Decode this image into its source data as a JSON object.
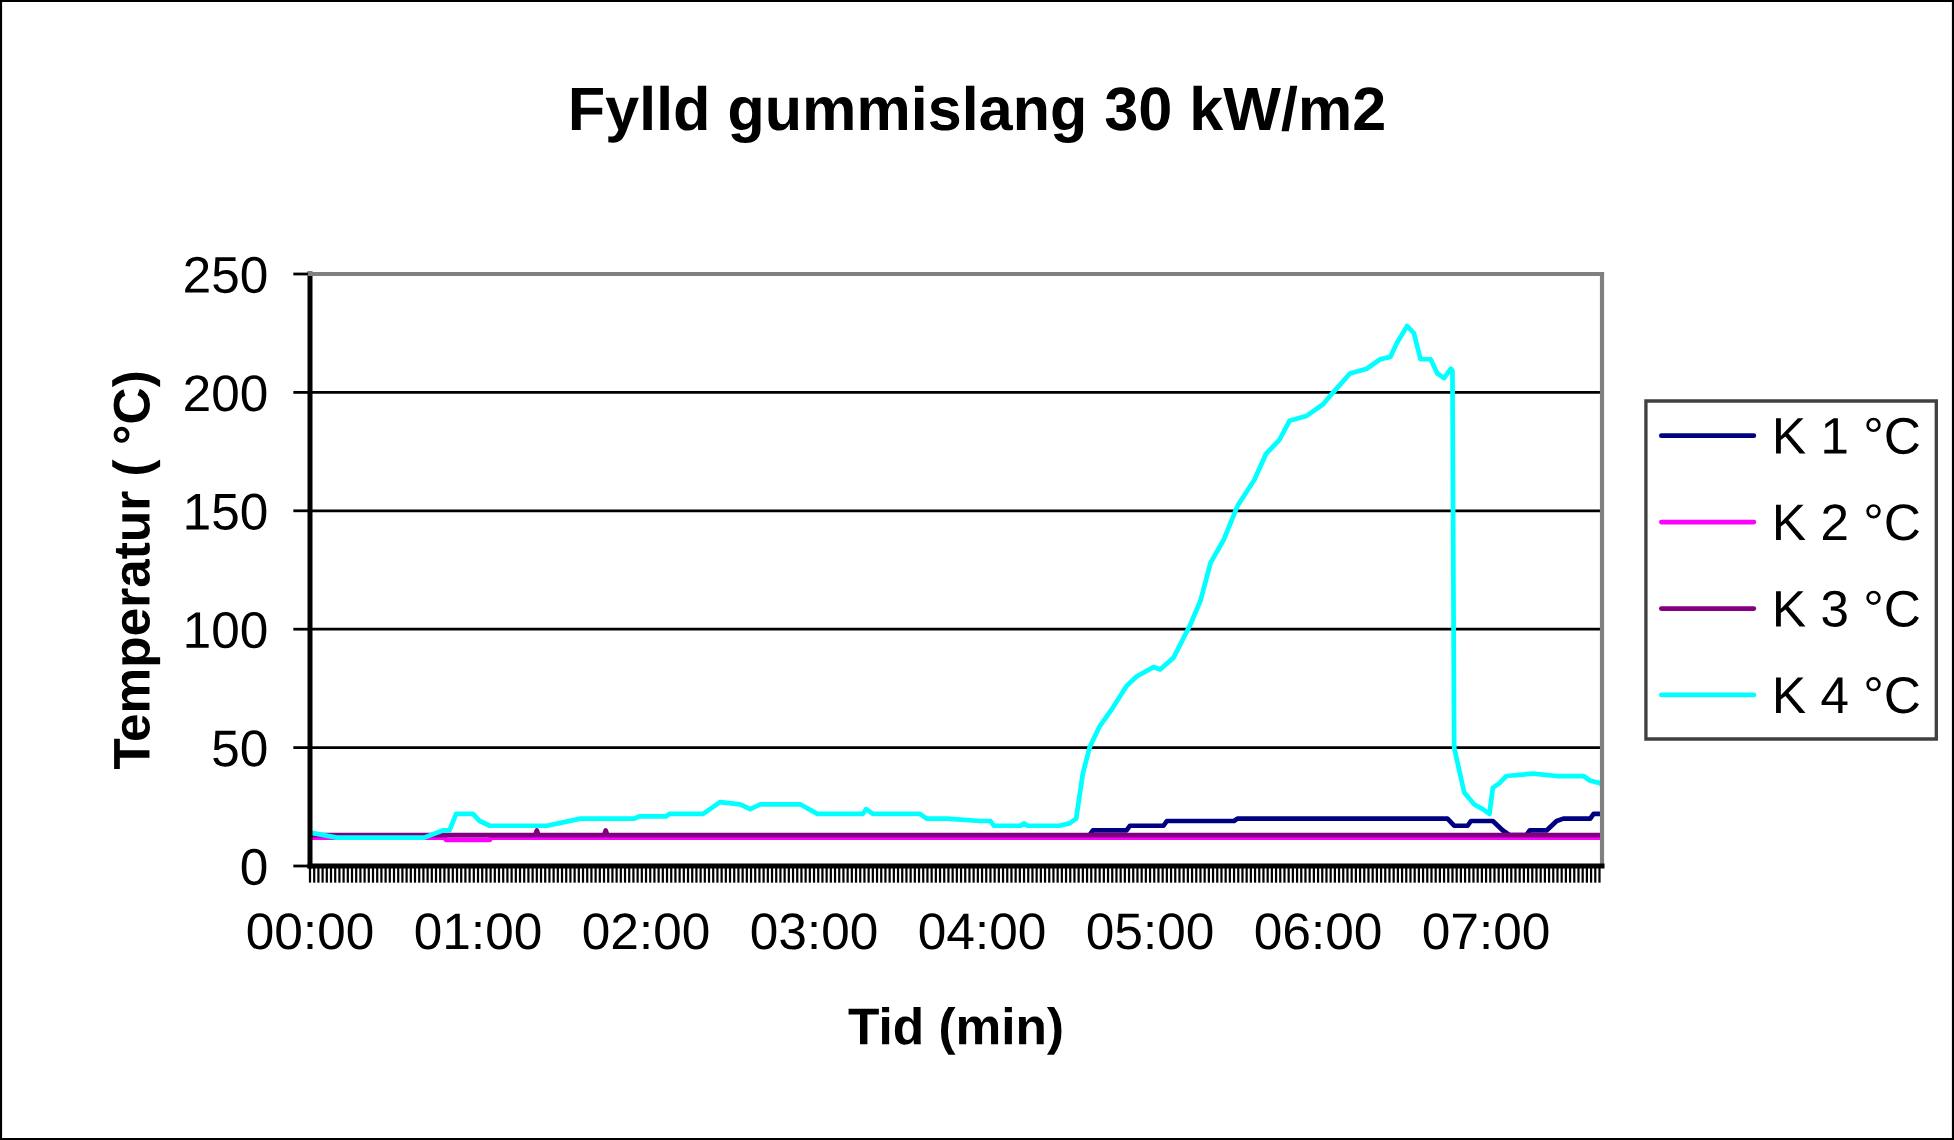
{
  "chart_data": {
    "type": "line",
    "title": "Fylld gummislang 30 kW/m2",
    "xlabel": "Tid (min)",
    "ylabel": "Temperatur ( °C)",
    "xlim": [
      0,
      7.69
    ],
    "ylim": [
      0,
      250
    ],
    "yticks": [
      0,
      50,
      100,
      150,
      200,
      250
    ],
    "xticks": [
      {
        "value": 0,
        "label": "00:00"
      },
      {
        "value": 0.025,
        "label": null
      },
      {
        "value": 0.05,
        "label": null
      },
      {
        "value": 0.075,
        "label": null
      },
      {
        "value": 0.1,
        "label": null
      },
      {
        "value": 0.125,
        "label": null
      },
      {
        "value": 0.15,
        "label": null
      },
      {
        "value": 0.175,
        "label": null
      },
      {
        "value": 0.2,
        "label": null
      },
      {
        "value": 0.225,
        "label": null
      },
      {
        "value": 0.25,
        "label": null
      },
      {
        "value": 0.275,
        "label": null
      },
      {
        "value": 0.3,
        "label": null
      },
      {
        "value": 0.325,
        "label": null
      },
      {
        "value": 0.35,
        "label": null
      },
      {
        "value": 0.375,
        "label": null
      },
      {
        "value": 0.4,
        "label": null
      },
      {
        "value": 0.425,
        "label": null
      },
      {
        "value": 0.45,
        "label": null
      },
      {
        "value": 0.475,
        "label": null
      },
      {
        "value": 0.5,
        "label": null
      },
      {
        "value": 0.525,
        "label": null
      },
      {
        "value": 0.55,
        "label": null
      },
      {
        "value": 0.575,
        "label": null
      },
      {
        "value": 0.6,
        "label": null
      },
      {
        "value": 0.625,
        "label": null
      },
      {
        "value": 0.65,
        "label": null
      },
      {
        "value": 0.675,
        "label": null
      },
      {
        "value": 0.7,
        "label": null
      },
      {
        "value": 0.725,
        "label": null
      },
      {
        "value": 0.75,
        "label": null
      },
      {
        "value": 0.775,
        "label": null
      },
      {
        "value": 0.8,
        "label": null
      },
      {
        "value": 0.825,
        "label": null
      },
      {
        "value": 0.85,
        "label": null
      },
      {
        "value": 0.875,
        "label": null
      },
      {
        "value": 0.9,
        "label": null
      },
      {
        "value": 0.925,
        "label": null
      },
      {
        "value": 0.95,
        "label": null
      },
      {
        "value": 0.975,
        "label": null
      },
      {
        "value": 1,
        "label": "01:00"
      },
      {
        "value": 1.025,
        "label": null
      },
      {
        "value": 1.05,
        "label": null
      },
      {
        "value": 1.075,
        "label": null
      },
      {
        "value": 1.1,
        "label": null
      },
      {
        "value": 1.125,
        "label": null
      },
      {
        "value": 1.15,
        "label": null
      },
      {
        "value": 1.175,
        "label": null
      },
      {
        "value": 1.2,
        "label": null
      },
      {
        "value": 1.225,
        "label": null
      },
      {
        "value": 1.25,
        "label": null
      },
      {
        "value": 1.275,
        "label": null
      },
      {
        "value": 1.3,
        "label": null
      },
      {
        "value": 1.325,
        "label": null
      },
      {
        "value": 1.35,
        "label": null
      },
      {
        "value": 1.375,
        "label": null
      },
      {
        "value": 1.4,
        "label": null
      },
      {
        "value": 1.425,
        "label": null
      },
      {
        "value": 1.45,
        "label": null
      },
      {
        "value": 1.475,
        "label": null
      },
      {
        "value": 1.5,
        "label": null
      },
      {
        "value": 1.525,
        "label": null
      },
      {
        "value": 1.55,
        "label": null
      },
      {
        "value": 1.575,
        "label": null
      },
      {
        "value": 1.6,
        "label": null
      },
      {
        "value": 1.625,
        "label": null
      },
      {
        "value": 1.65,
        "label": null
      },
      {
        "value": 1.675,
        "label": null
      },
      {
        "value": 1.7,
        "label": null
      },
      {
        "value": 1.725,
        "label": null
      },
      {
        "value": 1.75,
        "label": null
      },
      {
        "value": 1.775,
        "label": null
      },
      {
        "value": 1.8,
        "label": null
      },
      {
        "value": 1.825,
        "label": null
      },
      {
        "value": 1.85,
        "label": null
      },
      {
        "value": 1.875,
        "label": null
      },
      {
        "value": 1.9,
        "label": null
      },
      {
        "value": 1.925,
        "label": null
      },
      {
        "value": 1.95,
        "label": null
      },
      {
        "value": 1.975,
        "label": null
      },
      {
        "value": 2,
        "label": "02:00"
      },
      {
        "value": 2.025,
        "label": null
      },
      {
        "value": 2.05,
        "label": null
      },
      {
        "value": 2.075,
        "label": null
      },
      {
        "value": 2.1,
        "label": null
      },
      {
        "value": 2.125,
        "label": null
      },
      {
        "value": 2.15,
        "label": null
      },
      {
        "value": 2.175,
        "label": null
      },
      {
        "value": 2.2,
        "label": null
      },
      {
        "value": 2.225,
        "label": null
      },
      {
        "value": 2.25,
        "label": null
      },
      {
        "value": 2.275,
        "label": null
      },
      {
        "value": 2.3,
        "label": null
      },
      {
        "value": 2.325,
        "label": null
      },
      {
        "value": 2.35,
        "label": null
      },
      {
        "value": 2.375,
        "label": null
      },
      {
        "value": 2.4,
        "label": null
      },
      {
        "value": 2.425,
        "label": null
      },
      {
        "value": 2.45,
        "label": null
      },
      {
        "value": 2.475,
        "label": null
      },
      {
        "value": 2.5,
        "label": null
      },
      {
        "value": 2.525,
        "label": null
      },
      {
        "value": 2.55,
        "label": null
      },
      {
        "value": 2.575,
        "label": null
      },
      {
        "value": 2.6,
        "label": null
      },
      {
        "value": 2.625,
        "label": null
      },
      {
        "value": 2.65,
        "label": null
      },
      {
        "value": 2.675,
        "label": null
      },
      {
        "value": 2.7,
        "label": null
      },
      {
        "value": 2.725,
        "label": null
      },
      {
        "value": 2.75,
        "label": null
      },
      {
        "value": 2.775,
        "label": null
      },
      {
        "value": 2.8,
        "label": null
      },
      {
        "value": 2.825,
        "label": null
      },
      {
        "value": 2.85,
        "label": null
      },
      {
        "value": 2.875,
        "label": null
      },
      {
        "value": 2.9,
        "label": null
      },
      {
        "value": 2.925,
        "label": null
      },
      {
        "value": 2.95,
        "label": null
      },
      {
        "value": 2.975,
        "label": null
      },
      {
        "value": 3,
        "label": "03:00"
      },
      {
        "value": 3.025,
        "label": null
      },
      {
        "value": 3.05,
        "label": null
      },
      {
        "value": 3.075,
        "label": null
      },
      {
        "value": 3.1,
        "label": null
      },
      {
        "value": 3.125,
        "label": null
      },
      {
        "value": 3.15,
        "label": null
      },
      {
        "value": 3.175,
        "label": null
      },
      {
        "value": 3.2,
        "label": null
      },
      {
        "value": 3.225,
        "label": null
      },
      {
        "value": 3.25,
        "label": null
      },
      {
        "value": 3.275,
        "label": null
      },
      {
        "value": 3.3,
        "label": null
      },
      {
        "value": 3.325,
        "label": null
      },
      {
        "value": 3.35,
        "label": null
      },
      {
        "value": 3.375,
        "label": null
      },
      {
        "value": 3.4,
        "label": null
      },
      {
        "value": 3.425,
        "label": null
      },
      {
        "value": 3.45,
        "label": null
      },
      {
        "value": 3.475,
        "label": null
      },
      {
        "value": 3.5,
        "label": null
      },
      {
        "value": 3.525,
        "label": null
      },
      {
        "value": 3.55,
        "label": null
      },
      {
        "value": 3.575,
        "label": null
      },
      {
        "value": 3.6,
        "label": null
      },
      {
        "value": 3.625,
        "label": null
      },
      {
        "value": 3.65,
        "label": null
      },
      {
        "value": 3.675,
        "label": null
      },
      {
        "value": 3.7,
        "label": null
      },
      {
        "value": 3.725,
        "label": null
      },
      {
        "value": 3.75,
        "label": null
      },
      {
        "value": 3.775,
        "label": null
      },
      {
        "value": 3.8,
        "label": null
      },
      {
        "value": 3.825,
        "label": null
      },
      {
        "value": 3.85,
        "label": null
      },
      {
        "value": 3.875,
        "label": null
      },
      {
        "value": 3.9,
        "label": null
      },
      {
        "value": 3.925,
        "label": null
      },
      {
        "value": 3.95,
        "label": null
      },
      {
        "value": 3.975,
        "label": null
      },
      {
        "value": 4,
        "label": "04:00"
      },
      {
        "value": 4.025,
        "label": null
      },
      {
        "value": 4.05,
        "label": null
      },
      {
        "value": 4.075,
        "label": null
      },
      {
        "value": 4.1,
        "label": null
      },
      {
        "value": 4.125,
        "label": null
      },
      {
        "value": 4.15,
        "label": null
      },
      {
        "value": 4.175,
        "label": null
      },
      {
        "value": 4.2,
        "label": null
      },
      {
        "value": 4.225,
        "label": null
      },
      {
        "value": 4.25,
        "label": null
      },
      {
        "value": 4.275,
        "label": null
      },
      {
        "value": 4.3,
        "label": null
      },
      {
        "value": 4.325,
        "label": null
      },
      {
        "value": 4.35,
        "label": null
      },
      {
        "value": 4.375,
        "label": null
      },
      {
        "value": 4.4,
        "label": null
      },
      {
        "value": 4.425,
        "label": null
      },
      {
        "value": 4.45,
        "label": null
      },
      {
        "value": 4.475,
        "label": null
      },
      {
        "value": 4.5,
        "label": null
      },
      {
        "value": 4.525,
        "label": null
      },
      {
        "value": 4.55,
        "label": null
      },
      {
        "value": 4.575,
        "label": null
      },
      {
        "value": 4.6,
        "label": null
      },
      {
        "value": 4.625,
        "label": null
      },
      {
        "value": 4.65,
        "label": null
      },
      {
        "value": 4.675,
        "label": null
      },
      {
        "value": 4.7,
        "label": null
      },
      {
        "value": 4.725,
        "label": null
      },
      {
        "value": 4.75,
        "label": null
      },
      {
        "value": 4.775,
        "label": null
      },
      {
        "value": 4.8,
        "label": null
      },
      {
        "value": 4.825,
        "label": null
      },
      {
        "value": 4.85,
        "label": null
      },
      {
        "value": 4.875,
        "label": null
      },
      {
        "value": 4.9,
        "label": null
      },
      {
        "value": 4.925,
        "label": null
      },
      {
        "value": 4.95,
        "label": null
      },
      {
        "value": 4.975,
        "label": null
      },
      {
        "value": 5,
        "label": "05:00"
      },
      {
        "value": 5.025,
        "label": null
      },
      {
        "value": 5.05,
        "label": null
      },
      {
        "value": 5.075,
        "label": null
      },
      {
        "value": 5.1,
        "label": null
      },
      {
        "value": 5.125,
        "label": null
      },
      {
        "value": 5.15,
        "label": null
      },
      {
        "value": 5.175,
        "label": null
      },
      {
        "value": 5.2,
        "label": null
      },
      {
        "value": 5.225,
        "label": null
      },
      {
        "value": 5.25,
        "label": null
      },
      {
        "value": 5.275,
        "label": null
      },
      {
        "value": 5.3,
        "label": null
      },
      {
        "value": 5.325,
        "label": null
      },
      {
        "value": 5.35,
        "label": null
      },
      {
        "value": 5.375,
        "label": null
      },
      {
        "value": 5.4,
        "label": null
      },
      {
        "value": 5.425,
        "label": null
      },
      {
        "value": 5.45,
        "label": null
      },
      {
        "value": 5.475,
        "label": null
      },
      {
        "value": 5.5,
        "label": null
      },
      {
        "value": 5.525,
        "label": null
      },
      {
        "value": 5.55,
        "label": null
      },
      {
        "value": 5.575,
        "label": null
      },
      {
        "value": 5.6,
        "label": null
      },
      {
        "value": 5.625,
        "label": null
      },
      {
        "value": 5.65,
        "label": null
      },
      {
        "value": 5.675,
        "label": null
      },
      {
        "value": 5.7,
        "label": null
      },
      {
        "value": 5.725,
        "label": null
      },
      {
        "value": 5.75,
        "label": null
      },
      {
        "value": 5.775,
        "label": null
      },
      {
        "value": 5.8,
        "label": null
      },
      {
        "value": 5.825,
        "label": null
      },
      {
        "value": 5.85,
        "label": null
      },
      {
        "value": 5.875,
        "label": null
      },
      {
        "value": 5.9,
        "label": null
      },
      {
        "value": 5.925,
        "label": null
      },
      {
        "value": 5.95,
        "label": null
      },
      {
        "value": 5.975,
        "label": null
      },
      {
        "value": 6,
        "label": "06:00"
      },
      {
        "value": 6.025,
        "label": null
      },
      {
        "value": 6.05,
        "label": null
      },
      {
        "value": 6.075,
        "label": null
      },
      {
        "value": 6.1,
        "label": null
      },
      {
        "value": 6.125,
        "label": null
      },
      {
        "value": 6.15,
        "label": null
      },
      {
        "value": 6.175,
        "label": null
      },
      {
        "value": 6.2,
        "label": null
      },
      {
        "value": 6.225,
        "label": null
      },
      {
        "value": 6.25,
        "label": null
      },
      {
        "value": 6.275,
        "label": null
      },
      {
        "value": 6.3,
        "label": null
      },
      {
        "value": 6.325,
        "label": null
      },
      {
        "value": 6.35,
        "label": null
      },
      {
        "value": 6.375,
        "label": null
      },
      {
        "value": 6.4,
        "label": null
      },
      {
        "value": 6.425,
        "label": null
      },
      {
        "value": 6.45,
        "label": null
      },
      {
        "value": 6.475,
        "label": null
      },
      {
        "value": 6.5,
        "label": null
      },
      {
        "value": 6.525,
        "label": null
      },
      {
        "value": 6.55,
        "label": null
      },
      {
        "value": 6.575,
        "label": null
      },
      {
        "value": 6.6,
        "label": null
      },
      {
        "value": 6.625,
        "label": null
      },
      {
        "value": 6.65,
        "label": null
      },
      {
        "value": 6.675,
        "label": null
      },
      {
        "value": 6.7,
        "label": null
      },
      {
        "value": 6.725,
        "label": null
      },
      {
        "value": 6.75,
        "label": null
      },
      {
        "value": 6.775,
        "label": null
      },
      {
        "value": 6.8,
        "label": null
      },
      {
        "value": 6.825,
        "label": null
      },
      {
        "value": 6.85,
        "label": null
      },
      {
        "value": 6.875,
        "label": null
      },
      {
        "value": 6.9,
        "label": null
      },
      {
        "value": 6.925,
        "label": null
      },
      {
        "value": 6.95,
        "label": null
      },
      {
        "value": 6.975,
        "label": null
      },
      {
        "value": 7,
        "label": "07:00"
      },
      {
        "value": 7.025,
        "label": null
      },
      {
        "value": 7.05,
        "label": null
      },
      {
        "value": 7.075,
        "label": null
      },
      {
        "value": 7.1,
        "label": null
      },
      {
        "value": 7.125,
        "label": null
      },
      {
        "value": 7.15,
        "label": null
      },
      {
        "value": 7.175,
        "label": null
      },
      {
        "value": 7.2,
        "label": null
      },
      {
        "value": 7.225,
        "label": null
      },
      {
        "value": 7.25,
        "label": null
      },
      {
        "value": 7.275,
        "label": null
      },
      {
        "value": 7.3,
        "label": null
      },
      {
        "value": 7.325,
        "label": null
      },
      {
        "value": 7.35,
        "label": null
      },
      {
        "value": 7.375,
        "label": null
      },
      {
        "value": 7.4,
        "label": null
      },
      {
        "value": 7.425,
        "label": null
      },
      {
        "value": 7.45,
        "label": null
      },
      {
        "value": 7.475,
        "label": null
      },
      {
        "value": 7.5,
        "label": null
      },
      {
        "value": 7.525,
        "label": null
      },
      {
        "value": 7.55,
        "label": null
      },
      {
        "value": 7.575,
        "label": null
      },
      {
        "value": 7.6,
        "label": null
      },
      {
        "value": 7.625,
        "label": null
      },
      {
        "value": 7.65,
        "label": null
      },
      {
        "value": 7.675,
        "label": null
      }
    ],
    "grid": "y",
    "legend": "right",
    "line_style": "solid",
    "series": [
      {
        "name": "K 1 °C",
        "color": "#000080",
        "x": [
          4.64,
          4.66,
          4.86,
          4.88,
          5.08,
          5.1,
          5.5,
          5.52,
          6.77,
          6.81,
          6.89,
          6.91,
          7.04,
          7.1,
          7.14,
          7.24,
          7.26,
          7.36,
          7.42,
          7.46,
          7.62,
          7.64,
          7.69
        ],
        "values": [
          13,
          15,
          15,
          17,
          17,
          19,
          19,
          20,
          20,
          17,
          17,
          19,
          19,
          15,
          13,
          13,
          15,
          15,
          19,
          20,
          20,
          22,
          22
        ]
      },
      {
        "name": "K 2 °C",
        "color": "#ff00ff",
        "x": [
          0,
          0.8,
          0.81,
          1.07,
          1.08,
          7.69
        ],
        "values": [
          12,
          12,
          11,
          11,
          12,
          12
        ]
      },
      {
        "name": "K 3 °C",
        "color": "#800080",
        "x": [
          0,
          1.34,
          1.35,
          1.36,
          1.75,
          1.76,
          1.77,
          7.69
        ],
        "values": [
          13,
          13,
          15,
          13,
          13,
          15,
          13,
          13
        ]
      },
      {
        "name": "K 4 °C",
        "color": "#00ffff",
        "x": [
          0.01,
          0.16,
          0.68,
          0.79,
          0.83,
          0.87,
          0.97,
          1.01,
          1.07,
          1.41,
          1.61,
          1.93,
          1.96,
          2.12,
          2.14,
          2.34,
          2.44,
          2.56,
          2.62,
          2.68,
          2.92,
          3.02,
          3.29,
          3.31,
          3.35,
          3.63,
          3.67,
          3.79,
          3.99,
          4.05,
          4.07,
          4.23,
          4.25,
          4.27,
          4.46,
          4.52,
          4.56,
          4.6,
          4.64,
          4.7,
          4.78,
          4.86,
          4.92,
          5.02,
          5.06,
          5.14,
          5.24,
          5.3,
          5.36,
          5.44,
          5.52,
          5.62,
          5.69,
          5.77,
          5.83,
          5.93,
          6.03,
          6.09,
          6.19,
          6.29,
          6.37,
          6.43,
          6.47,
          6.53,
          6.57,
          6.61,
          6.67,
          6.71,
          6.75,
          6.79,
          6.8,
          6.81,
          6.87,
          6.93,
          6.98,
          7.02,
          7.04,
          7.08,
          7.12,
          7.28,
          7.42,
          7.58,
          7.62,
          7.68,
          7.69
        ],
        "values": [
          14,
          12,
          12,
          15,
          15,
          22,
          22,
          19,
          17,
          17,
          20,
          20,
          21,
          21,
          22,
          22,
          27,
          26,
          24,
          26,
          26,
          22,
          22,
          24,
          22,
          22,
          20,
          20,
          19,
          19,
          17,
          17,
          18,
          17,
          17,
          18,
          20,
          39,
          50,
          59,
          67,
          76,
          80,
          84,
          83,
          88,
          102,
          112,
          128,
          138,
          152,
          163,
          174,
          180,
          188,
          190,
          195,
          200,
          208,
          210,
          214,
          215,
          221,
          228,
          225,
          214,
          214,
          208,
          206,
          210,
          209,
          50,
          31,
          26,
          24,
          22,
          33,
          35,
          38,
          39,
          38,
          38,
          36,
          35,
          34
        ]
      }
    ]
  }
}
